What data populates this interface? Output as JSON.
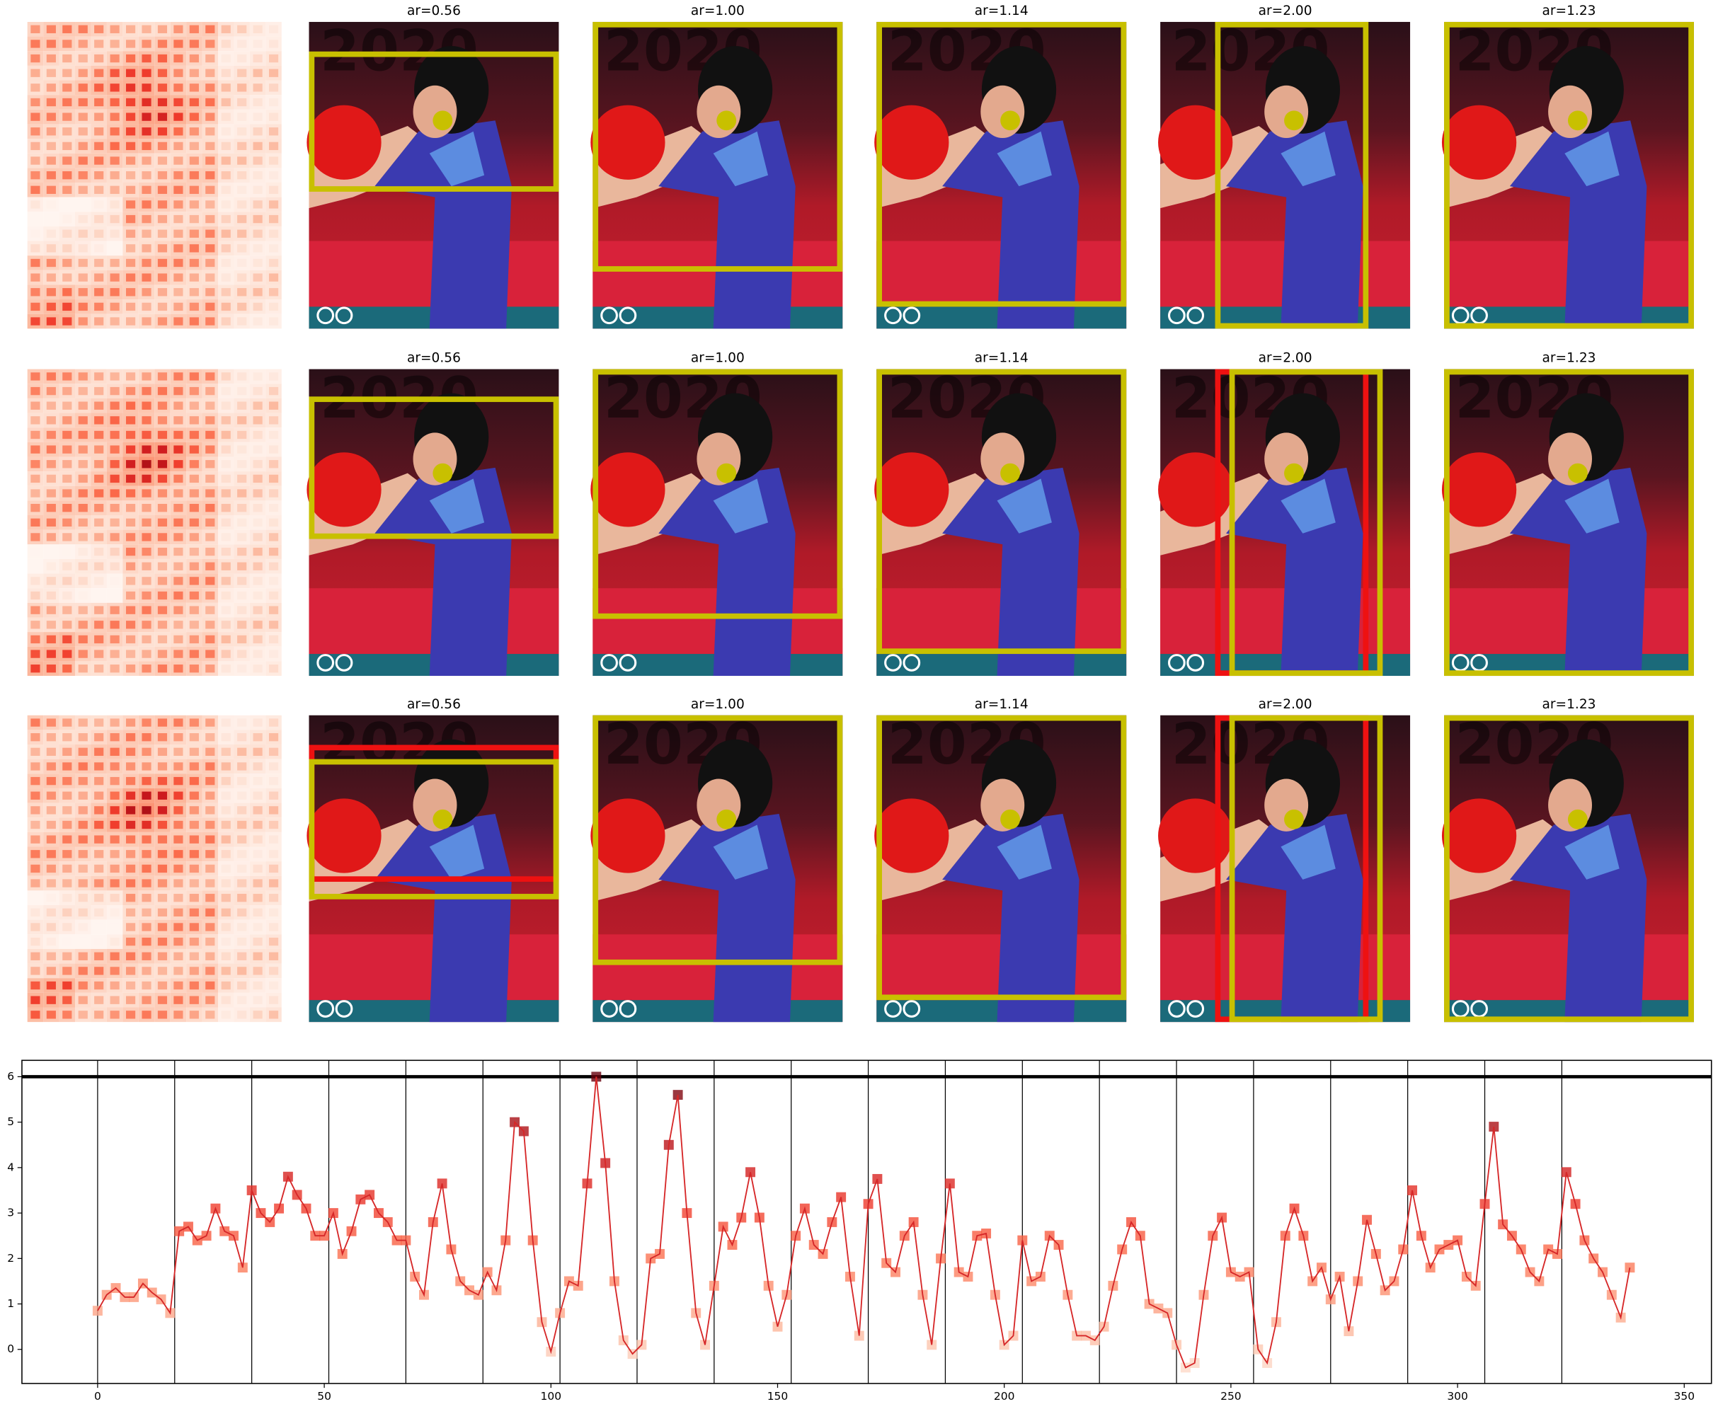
{
  "panels": {
    "rows": [
      {
        "titles": [
          "ar=0.56",
          "ar=1.00",
          "ar=1.14",
          "ar=2.00",
          "ar=1.23"
        ]
      },
      {
        "titles": [
          "ar=0.56",
          "ar=1.00",
          "ar=1.14",
          "ar=2.00",
          "ar=1.23"
        ]
      },
      {
        "titles": [
          "ar=0.56",
          "ar=1.00",
          "ar=1.14",
          "ar=2.00",
          "ar=1.23"
        ]
      }
    ]
  },
  "chart_data": {
    "type": "line",
    "x": [
      0,
      2,
      4,
      6,
      8,
      10,
      12,
      14,
      16,
      18,
      20,
      22,
      24,
      26,
      28,
      30,
      32,
      34,
      36,
      38,
      40,
      42,
      44,
      46,
      48,
      50,
      52,
      54,
      56,
      58,
      60,
      62,
      64,
      66,
      68,
      70,
      72,
      74,
      76,
      78,
      80,
      82,
      84,
      86,
      88,
      90,
      92,
      94,
      96,
      98,
      100,
      102,
      104,
      106,
      108,
      110,
      112,
      114,
      116,
      118,
      120,
      122,
      124,
      126,
      128,
      130,
      132,
      134,
      136,
      138,
      140,
      142,
      144,
      146,
      148,
      150,
      152,
      154,
      156,
      158,
      160,
      162,
      164,
      166,
      168,
      170,
      172,
      174,
      176,
      178,
      180,
      182,
      184,
      186,
      188,
      190,
      192,
      194,
      196,
      198,
      200,
      202,
      204,
      206,
      208,
      210,
      212,
      214,
      216,
      218,
      220,
      222,
      224,
      226,
      228,
      230,
      232,
      234,
      236,
      238,
      240,
      242,
      244,
      246,
      248,
      250,
      252,
      254,
      256,
      258,
      260,
      262,
      264,
      266,
      268,
      270,
      272,
      274,
      276,
      278,
      280,
      282,
      284,
      286,
      288,
      290,
      292,
      294,
      296,
      298,
      300,
      302,
      304,
      306,
      308,
      310,
      312,
      314,
      316,
      318,
      320,
      322,
      324,
      326,
      328,
      330,
      332,
      334,
      336,
      338
    ],
    "series": [
      {
        "color": "#d62728",
        "colormap": "Reds",
        "values": [
          0.85,
          1.2,
          1.35,
          1.15,
          1.15,
          1.45,
          1.25,
          1.1,
          0.8,
          2.6,
          2.7,
          2.4,
          2.5,
          3.1,
          2.6,
          2.5,
          1.8,
          3.5,
          3.0,
          2.8,
          3.1,
          3.8,
          3.4,
          3.1,
          2.5,
          2.5,
          3.0,
          2.1,
          2.6,
          3.3,
          3.4,
          3.0,
          2.8,
          2.4,
          2.4,
          1.6,
          1.2,
          2.8,
          3.65,
          2.2,
          1.5,
          1.3,
          1.2,
          1.7,
          1.3,
          2.4,
          5.0,
          4.8,
          2.4,
          0.6,
          -0.05,
          0.8,
          1.5,
          1.4,
          3.65,
          6.0,
          4.1,
          1.5,
          0.2,
          -0.1,
          0.1,
          2.0,
          2.1,
          4.5,
          5.6,
          3.0,
          0.8,
          0.1,
          1.4,
          2.7,
          2.3,
          2.9,
          3.9,
          2.9,
          1.4,
          0.5,
          1.2,
          2.5,
          3.1,
          2.3,
          2.1,
          2.8,
          3.35,
          1.6,
          0.3,
          3.2,
          3.75,
          1.9,
          1.7,
          2.5,
          2.8,
          1.2,
          0.1,
          2.0,
          3.65,
          1.7,
          1.6,
          2.5,
          2.55,
          1.2,
          0.1,
          0.3,
          2.4,
          1.5,
          1.6,
          2.5,
          2.3,
          1.2,
          0.3,
          0.3,
          0.2,
          0.5,
          1.4,
          2.2,
          2.8,
          2.5,
          1.0,
          0.9,
          0.8,
          0.1,
          -0.4,
          -0.3,
          1.2,
          2.5,
          2.9,
          1.7,
          1.6,
          1.7,
          0.0,
          -0.3,
          0.6,
          2.5,
          3.1,
          2.5,
          1.5,
          1.8,
          1.1,
          1.6,
          0.4,
          1.5,
          2.85,
          2.1,
          1.3,
          1.5,
          2.2,
          3.5,
          2.5,
          1.8,
          2.2,
          2.3,
          2.4,
          1.6,
          1.4,
          3.2,
          4.9,
          2.75,
          2.5,
          2.2,
          1.7,
          1.5,
          2.2,
          2.1,
          3.9,
          3.2,
          2.4,
          2.0,
          1.7,
          1.2,
          0.7,
          1.8
        ]
      }
    ],
    "hline": 6,
    "vlines": [
      0,
      17,
      34,
      51,
      68,
      85,
      102,
      119,
      136,
      153,
      170,
      187,
      204,
      221,
      238,
      255,
      272,
      289,
      306,
      323
    ],
    "xlim": [
      -16.7,
      356
    ],
    "ylim": [
      -0.75,
      6.36
    ],
    "xticks": [
      0,
      50,
      100,
      150,
      200,
      250,
      300,
      350
    ],
    "yticks": [
      0,
      1,
      2,
      3,
      4,
      5,
      6
    ]
  }
}
